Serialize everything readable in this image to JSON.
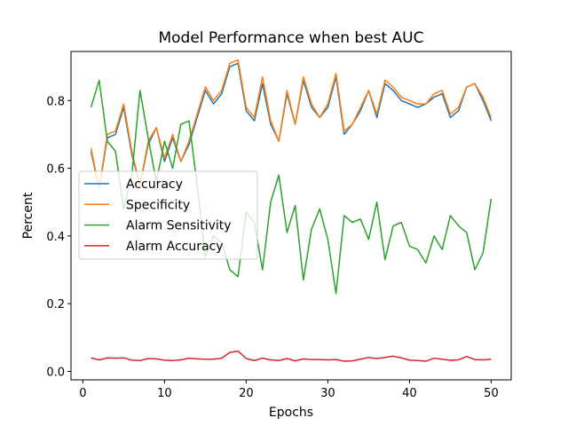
{
  "chart_data": {
    "type": "line",
    "title": "Model Performance when best AUC",
    "xlabel": "Epochs",
    "ylabel": "Percent",
    "xlim": [
      -1.45,
      52.45
    ],
    "ylim": [
      -0.025,
      0.945
    ],
    "xticks": [
      0,
      10,
      20,
      30,
      40,
      50
    ],
    "yticks": [
      0.0,
      0.2,
      0.4,
      0.6,
      0.8
    ],
    "ytick_labels": [
      "0.0",
      "0.2",
      "0.4",
      "0.6",
      "0.8"
    ],
    "grid": false,
    "legend": "center-left",
    "x": [
      1,
      2,
      3,
      4,
      5,
      6,
      7,
      8,
      9,
      10,
      11,
      12,
      13,
      14,
      15,
      16,
      17,
      18,
      19,
      20,
      21,
      22,
      23,
      24,
      25,
      26,
      27,
      28,
      29,
      30,
      31,
      32,
      33,
      34,
      35,
      36,
      37,
      38,
      39,
      40,
      41,
      42,
      43,
      44,
      45,
      46,
      47,
      48,
      49,
      50
    ],
    "series": [
      {
        "name": "Accuracy",
        "color": "#1f77b4",
        "values": [
          0.65,
          0.54,
          0.69,
          0.7,
          0.78,
          0.64,
          0.55,
          0.67,
          0.72,
          0.62,
          0.69,
          0.62,
          0.67,
          0.75,
          0.83,
          0.79,
          0.82,
          0.9,
          0.91,
          0.77,
          0.74,
          0.85,
          0.73,
          0.68,
          0.82,
          0.73,
          0.86,
          0.78,
          0.75,
          0.78,
          0.87,
          0.7,
          0.73,
          0.77,
          0.83,
          0.75,
          0.85,
          0.83,
          0.8,
          0.79,
          0.78,
          0.79,
          0.81,
          0.82,
          0.75,
          0.77,
          0.84,
          0.85,
          0.8,
          0.74
        ]
      },
      {
        "name": "Specificity",
        "color": "#ff7f0e",
        "values": [
          0.66,
          0.54,
          0.7,
          0.71,
          0.79,
          0.65,
          0.55,
          0.68,
          0.72,
          0.63,
          0.7,
          0.62,
          0.68,
          0.76,
          0.84,
          0.8,
          0.83,
          0.91,
          0.92,
          0.78,
          0.75,
          0.87,
          0.74,
          0.68,
          0.83,
          0.73,
          0.87,
          0.79,
          0.75,
          0.79,
          0.88,
          0.71,
          0.73,
          0.78,
          0.83,
          0.76,
          0.86,
          0.84,
          0.81,
          0.8,
          0.79,
          0.79,
          0.82,
          0.83,
          0.76,
          0.78,
          0.84,
          0.85,
          0.81,
          0.75
        ]
      },
      {
        "name": "Alarm Sensitivity",
        "color": "#2ca02c",
        "values": [
          0.78,
          0.86,
          0.68,
          0.65,
          0.48,
          0.58,
          0.83,
          0.69,
          0.56,
          0.68,
          0.6,
          0.73,
          0.74,
          0.55,
          0.34,
          0.4,
          0.38,
          0.3,
          0.28,
          0.47,
          0.44,
          0.3,
          0.5,
          0.58,
          0.41,
          0.49,
          0.27,
          0.42,
          0.48,
          0.39,
          0.23,
          0.46,
          0.44,
          0.45,
          0.39,
          0.5,
          0.33,
          0.43,
          0.44,
          0.37,
          0.36,
          0.32,
          0.4,
          0.36,
          0.46,
          0.43,
          0.41,
          0.3,
          0.35,
          0.51
        ]
      },
      {
        "name": "Alarm Accuracy",
        "color": "#d62728",
        "values": [
          0.04,
          0.034,
          0.04,
          0.039,
          0.04,
          0.033,
          0.032,
          0.038,
          0.037,
          0.033,
          0.032,
          0.034,
          0.039,
          0.037,
          0.036,
          0.036,
          0.039,
          0.056,
          0.06,
          0.038,
          0.032,
          0.039,
          0.034,
          0.032,
          0.038,
          0.031,
          0.037,
          0.035,
          0.035,
          0.034,
          0.035,
          0.03,
          0.031,
          0.036,
          0.041,
          0.038,
          0.041,
          0.045,
          0.04,
          0.033,
          0.032,
          0.03,
          0.039,
          0.036,
          0.033,
          0.034,
          0.044,
          0.035,
          0.034,
          0.036
        ]
      }
    ]
  }
}
